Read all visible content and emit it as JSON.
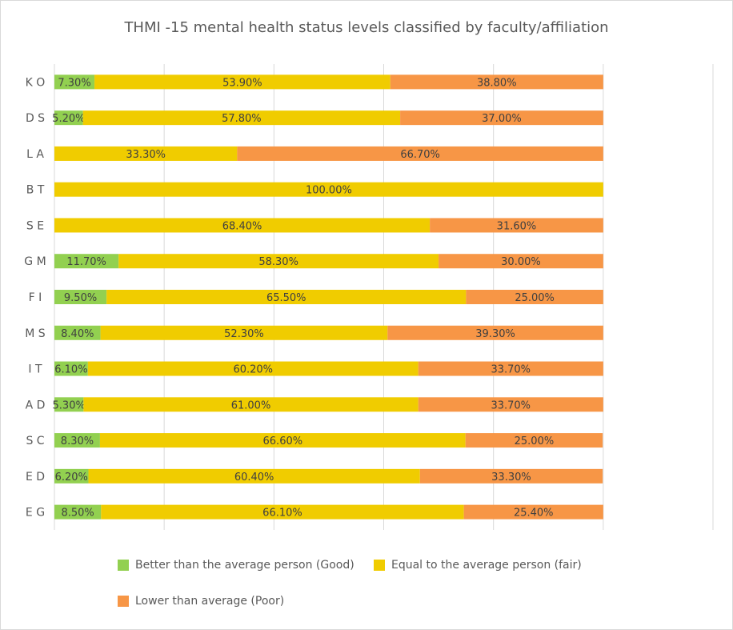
{
  "chart_data": {
    "type": "bar",
    "orientation": "horizontal",
    "stacked": true,
    "title": "THMI -15 mental health status levels classified by faculty/affiliation",
    "categories": [
      "K O",
      "D S",
      "L A",
      "B T",
      "S E",
      "G M",
      "F I",
      "M S",
      "I T",
      "A D",
      "S C",
      "E D",
      "E G"
    ],
    "series": [
      {
        "name": "Better than the average person (Good)",
        "color": "#92D050",
        "values": [
          7.3,
          5.2,
          0,
          0,
          0,
          11.7,
          9.5,
          8.4,
          6.1,
          5.3,
          8.3,
          6.2,
          8.5
        ]
      },
      {
        "name": "Equal to the average person (fair)",
        "color": "#F0CC00",
        "values": [
          53.9,
          57.8,
          33.3,
          100,
          68.4,
          58.3,
          65.5,
          52.3,
          60.2,
          61.0,
          66.6,
          60.4,
          66.1
        ]
      },
      {
        "name": "Lower than average (Poor)",
        "color": "#F79646",
        "values": [
          38.8,
          37.0,
          66.7,
          0,
          31.6,
          30.0,
          25.0,
          39.3,
          33.7,
          33.7,
          25.0,
          33.3,
          25.4
        ]
      }
    ],
    "xlim": [
      0,
      120
    ],
    "x_grid_step": 20,
    "grid": true,
    "value_format": "percent_2dp",
    "legend_position": "bottom"
  }
}
